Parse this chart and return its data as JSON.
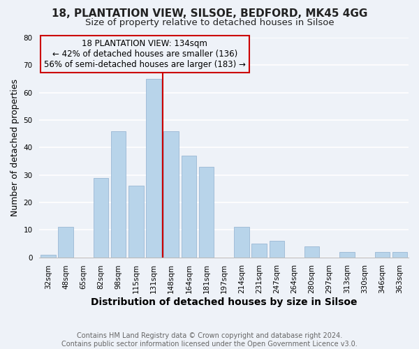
{
  "title1": "18, PLANTATION VIEW, SILSOE, BEDFORD, MK45 4GG",
  "title2": "Size of property relative to detached houses in Silsoe",
  "xlabel": "Distribution of detached houses by size in Silsoe",
  "ylabel": "Number of detached properties",
  "categories": [
    "32sqm",
    "48sqm",
    "65sqm",
    "82sqm",
    "98sqm",
    "115sqm",
    "131sqm",
    "148sqm",
    "164sqm",
    "181sqm",
    "197sqm",
    "214sqm",
    "231sqm",
    "247sqm",
    "264sqm",
    "280sqm",
    "297sqm",
    "313sqm",
    "330sqm",
    "346sqm",
    "363sqm"
  ],
  "values": [
    1,
    11,
    0,
    29,
    46,
    26,
    65,
    46,
    37,
    33,
    0,
    11,
    5,
    6,
    0,
    4,
    0,
    2,
    0,
    2,
    2
  ],
  "bar_color": "#b8d4ea",
  "bar_edge_color": "#9ab8d4",
  "vline_color": "#cc0000",
  "annotation_title": "18 PLANTATION VIEW: 134sqm",
  "annotation_line1": "← 42% of detached houses are smaller (136)",
  "annotation_line2": "56% of semi-detached houses are larger (183) →",
  "annotation_box_edge": "#cc0000",
  "ylim": [
    0,
    80
  ],
  "yticks": [
    0,
    10,
    20,
    30,
    40,
    50,
    60,
    70,
    80
  ],
  "footer1": "Contains HM Land Registry data © Crown copyright and database right 2024.",
  "footer2": "Contains public sector information licensed under the Open Government Licence v3.0.",
  "background_color": "#eef2f8",
  "grid_color": "#ffffff",
  "title1_fontsize": 11,
  "title2_fontsize": 9.5,
  "xlabel_fontsize": 10,
  "ylabel_fontsize": 9,
  "tick_fontsize": 7.5,
  "annotation_fontsize": 8.5,
  "footer_fontsize": 7
}
